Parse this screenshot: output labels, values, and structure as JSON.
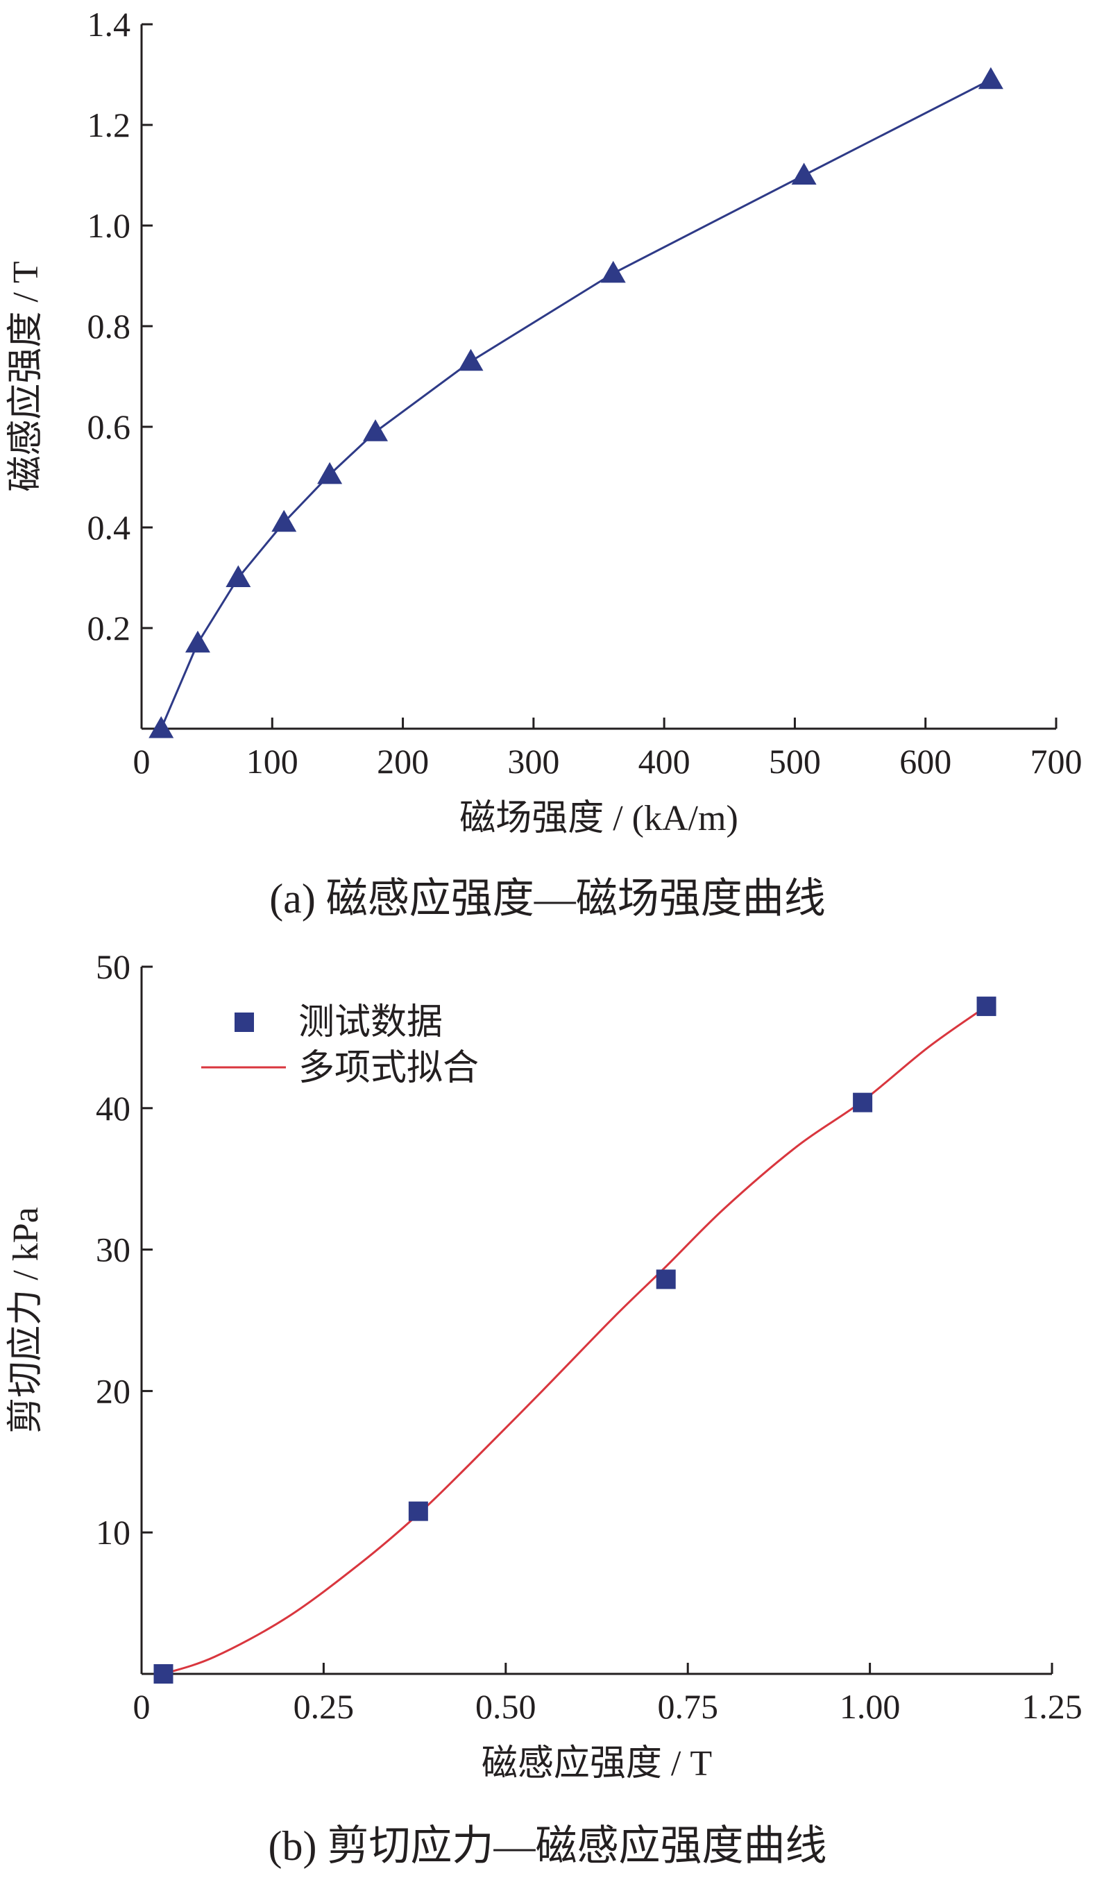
{
  "chart_data": [
    {
      "type": "line",
      "caption": "(a) 磁感应强度—磁场强度曲线",
      "xlabel": "磁场强度 / (kA/m)",
      "ylabel": "磁感应强度 / T",
      "xlim": [
        0,
        700
      ],
      "ylim": [
        0,
        1.4
      ],
      "xticks": [
        "0",
        "100",
        "200",
        "300",
        "400",
        "500",
        "600",
        "700"
      ],
      "yticks": [
        "0.2",
        "0.4",
        "0.6",
        "0.8",
        "1.0",
        "1.2",
        "1.4"
      ],
      "marker": "triangle",
      "color": "#2e3a87",
      "series": [
        {
          "x": [
            15,
            43,
            74,
            109,
            144,
            179,
            252,
            361,
            507,
            650
          ],
          "y": [
            0.0,
            0.17,
            0.3,
            0.41,
            0.505,
            0.59,
            0.73,
            0.905,
            1.1,
            1.29
          ]
        }
      ]
    },
    {
      "type": "scatter",
      "caption": "(b) 剪切应力—磁感应强度曲线",
      "xlabel": "磁感应强度 / T",
      "ylabel": "剪切应力 / kPa",
      "xlim": [
        0,
        1.25
      ],
      "ylim": [
        0,
        50
      ],
      "xticks": [
        "0",
        "0.25",
        "0.50",
        "0.75",
        "1.00",
        "1.25"
      ],
      "yticks": [
        "10",
        "20",
        "30",
        "40",
        "50"
      ],
      "legend_position": "top-left",
      "series": [
        {
          "name": "测试数据",
          "marker": "square",
          "color": "#2e3a87",
          "x": [
            0.03,
            0.38,
            0.72,
            0.99,
            1.16
          ],
          "y": [
            0.0,
            11.5,
            27.9,
            40.4,
            47.2
          ]
        },
        {
          "name": "多项式拟合",
          "marker": "line",
          "color": "#d9363e",
          "x": [
            0.03,
            0.1,
            0.2,
            0.3,
            0.38,
            0.45,
            0.55,
            0.65,
            0.72,
            0.8,
            0.9,
            0.99,
            1.08,
            1.16
          ],
          "y": [
            0.0,
            1.2,
            4.0,
            7.8,
            11.3,
            14.8,
            20.0,
            25.3,
            28.8,
            32.9,
            37.3,
            40.5,
            44.3,
            47.2
          ]
        }
      ]
    }
  ]
}
